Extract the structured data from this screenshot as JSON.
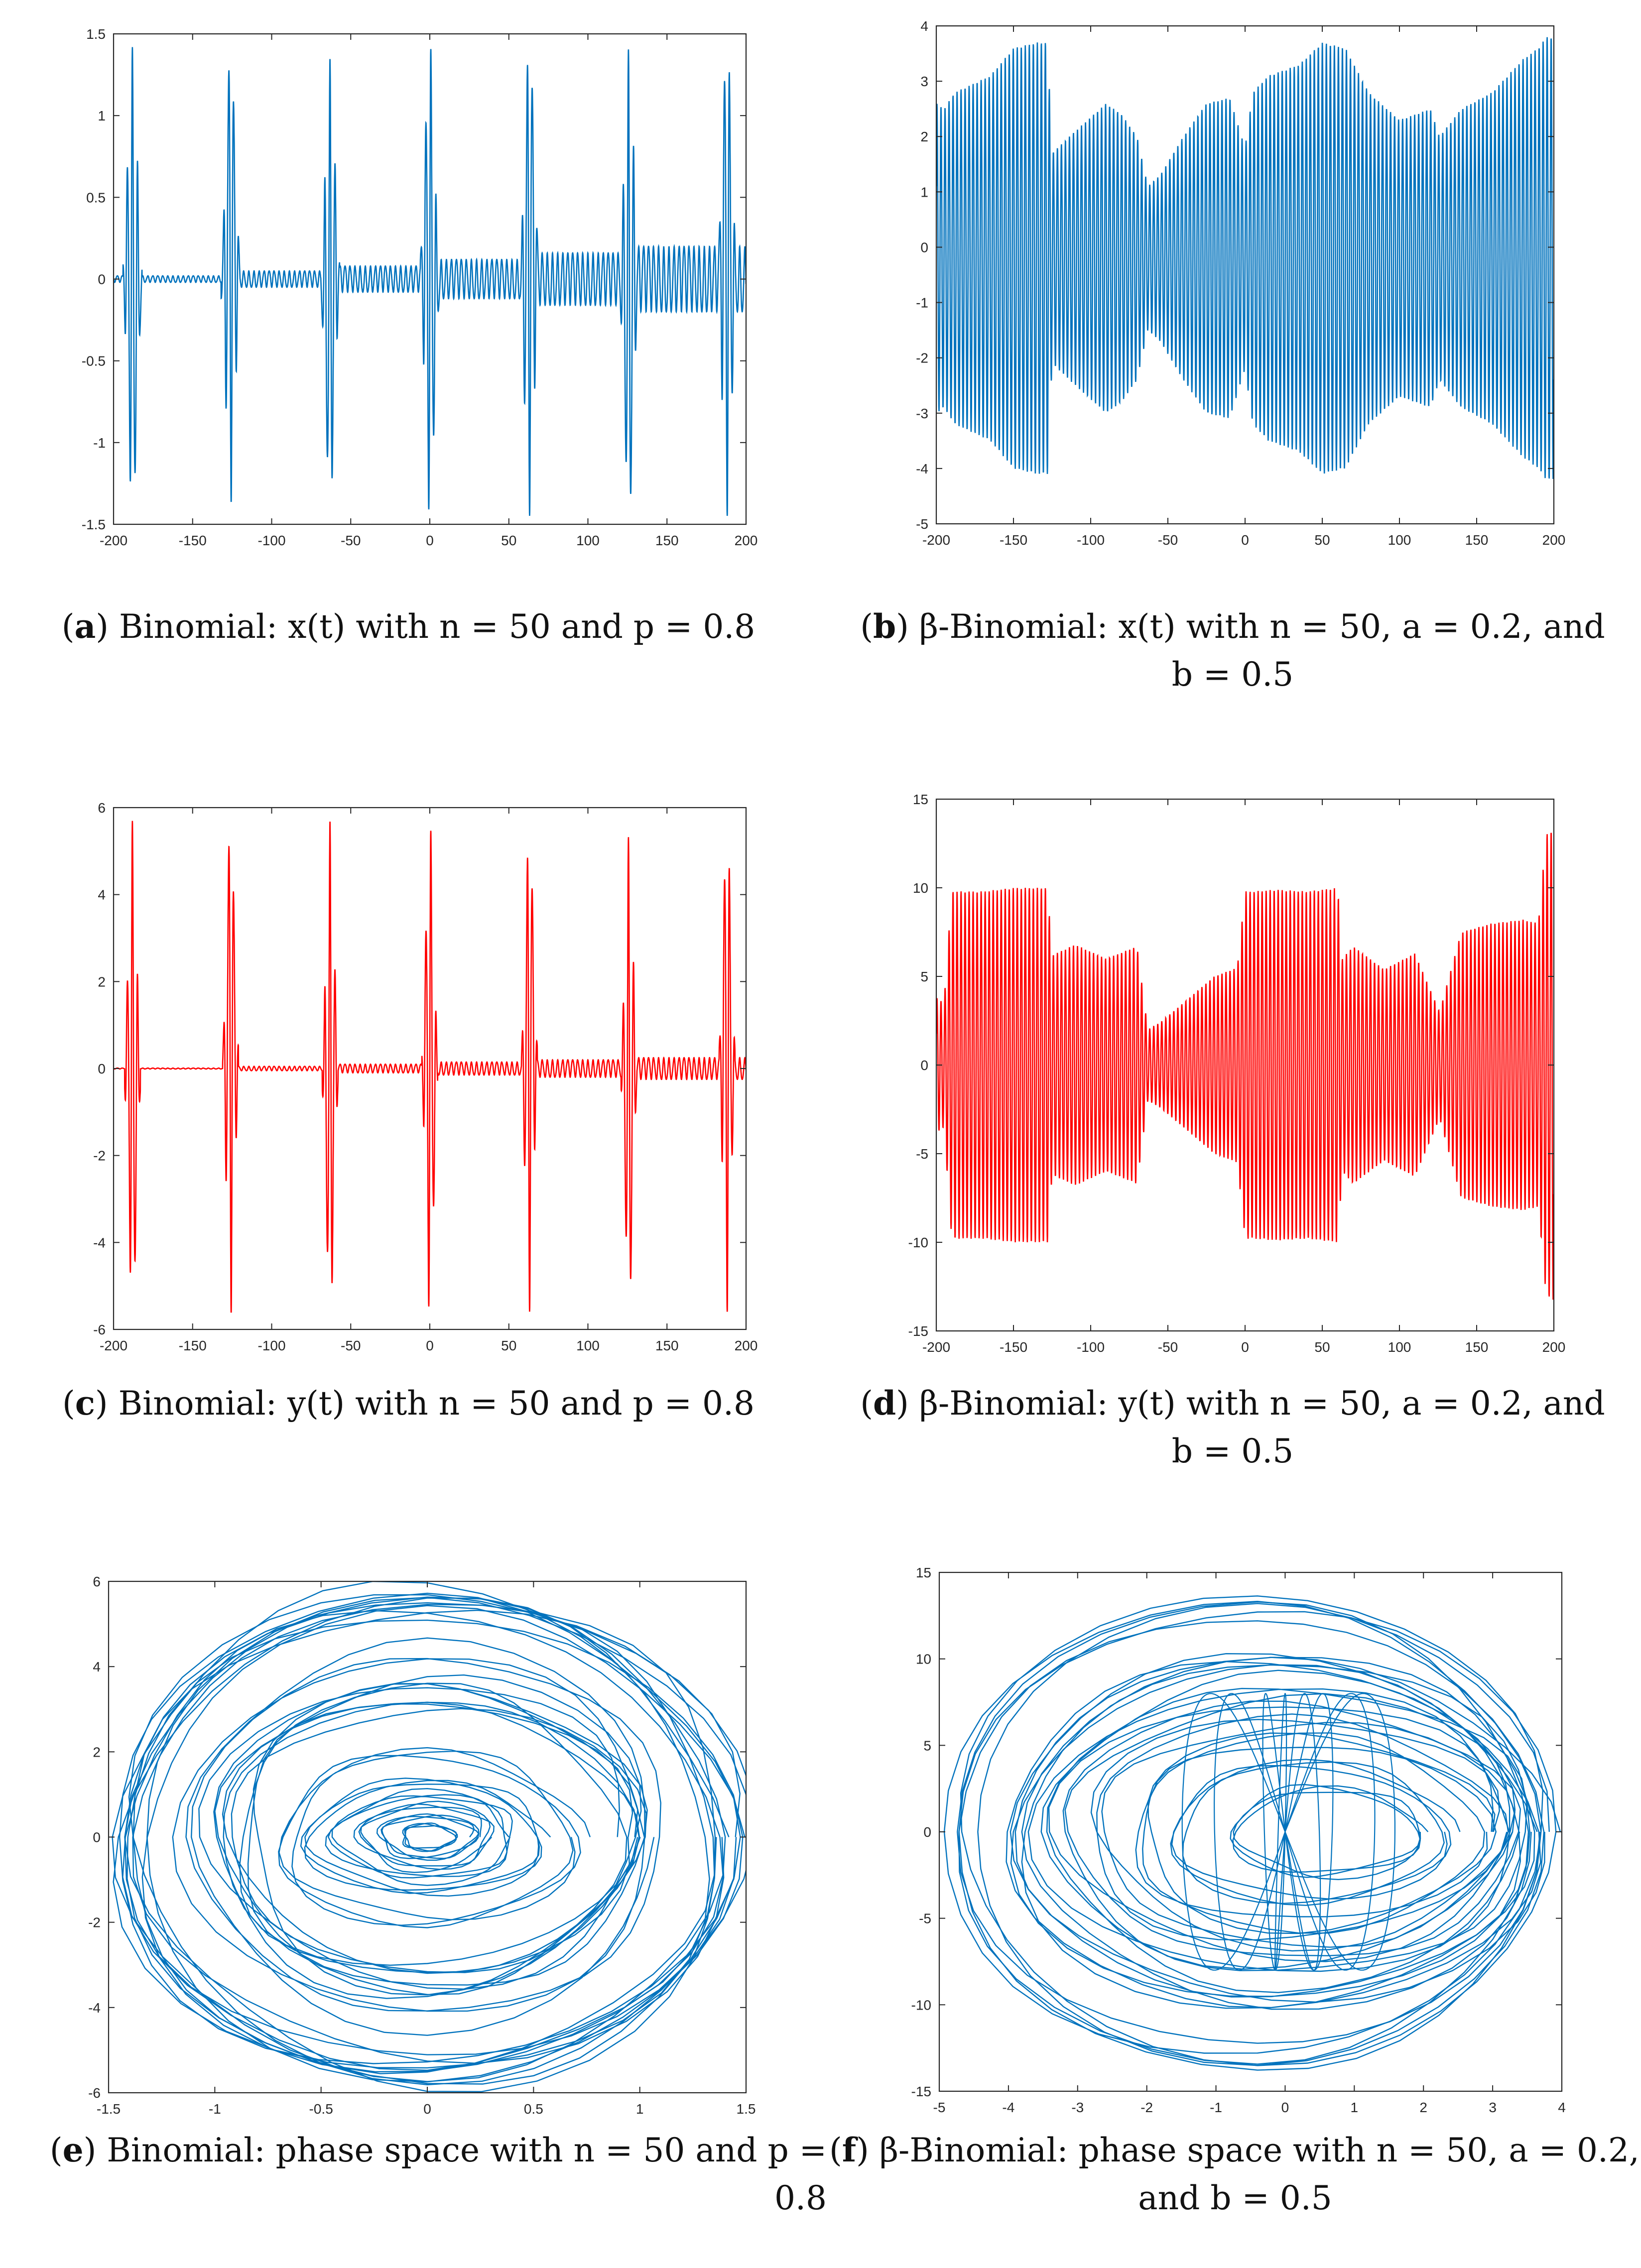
{
  "figure": {
    "panels": [
      {
        "id": "a",
        "letter": "a",
        "caption_line1": " Binomial: x(t) with n = 50 and p = 0.8",
        "caption_line2": ""
      },
      {
        "id": "b",
        "letter": "b",
        "caption_line1": " β-Binomial: x(t) with n = 50, a = 0.2, and",
        "caption_line2": "b = 0.5"
      },
      {
        "id": "c",
        "letter": "c",
        "caption_line1": " Binomial: y(t) with n = 50 and p = 0.8",
        "caption_line2": ""
      },
      {
        "id": "d",
        "letter": "d",
        "caption_line1": " β-Binomial: y(t) with n = 50, a = 0.2, and",
        "caption_line2": "b = 0.5"
      },
      {
        "id": "e",
        "letter": "e",
        "caption_line1": " Binomial: phase space with n = 50 and p = 0.8",
        "caption_line2": ""
      },
      {
        "id": "f",
        "letter": "f",
        "caption_line1": " β-Binomial: phase space with n = 50, a = 0.2,",
        "caption_line2": "and b = 0.5"
      }
    ]
  },
  "colors": {
    "blue": "#0072BD",
    "red": "#FF0000",
    "axis": "#262626"
  },
  "chart_data": [
    {
      "id": "a",
      "type": "line",
      "title": "",
      "xlabel": "",
      "ylabel": "",
      "xlim": [
        -200,
        200
      ],
      "ylim": [
        -1.5,
        1.5
      ],
      "xticks": [
        -200,
        -150,
        -100,
        -50,
        0,
        50,
        100,
        150,
        200
      ],
      "xtick_labels": [
        "-200",
        "-150",
        "-100",
        "-50",
        "0",
        "50",
        "100",
        "150",
        "200"
      ],
      "yticks": [
        -1.5,
        -1,
        -0.5,
        0,
        0.5,
        1,
        1.5
      ],
      "ytick_labels": [
        "-1.5",
        "-1",
        "-0.5",
        "0",
        "0.5",
        "1",
        "1.5"
      ],
      "color": "blue",
      "grid": false,
      "series": [
        {
          "name": "x(t)",
          "model": "bursts",
          "burst_centers": [
            -188,
            -126,
            -63,
            0,
            63,
            126,
            188
          ],
          "burst_amplitudes": [
            1.42,
            1.38,
            1.35,
            1.45,
            1.45,
            1.42,
            1.45
          ],
          "burst_halfwidth": 6,
          "between_amplitudes": [
            0.02,
            0.05,
            0.08,
            0.12,
            0.16,
            0.2
          ],
          "oscillation_period": 3.2
        }
      ]
    },
    {
      "id": "b",
      "type": "line",
      "title": "",
      "xlabel": "",
      "ylabel": "",
      "xlim": [
        -200,
        200
      ],
      "ylim": [
        -5,
        4
      ],
      "xticks": [
        -200,
        -150,
        -100,
        -50,
        0,
        50,
        100,
        150,
        200
      ],
      "xtick_labels": [
        "-200",
        "-150",
        "-100",
        "-50",
        "0",
        "50",
        "100",
        "150",
        "200"
      ],
      "yticks": [
        -5,
        -4,
        -3,
        -2,
        -1,
        0,
        1,
        2,
        3,
        4
      ],
      "ytick_labels": [
        "-5",
        "-4",
        "-3",
        "-2",
        "-1",
        "0",
        "1",
        "2",
        "3",
        "4"
      ],
      "color": "blue",
      "grid": false,
      "series": [
        {
          "name": "x(t)",
          "model": "envelope",
          "envelope_t": [
            -200,
            -195,
            -188,
            -165,
            -150,
            -135,
            -128,
            -125,
            -110,
            -90,
            -80,
            -70,
            -63,
            -55,
            -40,
            -25,
            -10,
            0,
            5,
            15,
            35,
            50,
            65,
            80,
            100,
            120,
            126,
            140,
            160,
            180,
            190,
            195,
            200
          ],
          "envelope_a": [
            2.8,
            2.7,
            3.0,
            3.3,
            3.8,
            3.9,
            3.9,
            1.9,
            2.3,
            2.8,
            2.6,
            2.2,
            1.3,
            1.5,
            2.2,
            2.8,
            2.9,
            2.0,
            3.0,
            3.3,
            3.5,
            3.9,
            3.8,
            3.0,
            2.5,
            2.7,
            2.2,
            2.7,
            3.0,
            3.6,
            3.8,
            4.0,
            4.0
          ],
          "oscillation_period": 2.6,
          "offset": -0.2
        }
      ]
    },
    {
      "id": "c",
      "type": "line",
      "title": "",
      "xlabel": "",
      "ylabel": "",
      "xlim": [
        -200,
        200
      ],
      "ylim": [
        -6,
        6
      ],
      "xticks": [
        -200,
        -150,
        -100,
        -50,
        0,
        50,
        100,
        150,
        200
      ],
      "xtick_labels": [
        "-200",
        "-150",
        "-100",
        "-50",
        "0",
        "50",
        "100",
        "150",
        "200"
      ],
      "yticks": [
        -6,
        -4,
        -2,
        0,
        2,
        4,
        6
      ],
      "ytick_labels": [
        "-6",
        "-4",
        "-2",
        "0",
        "2",
        "4",
        "6"
      ],
      "color": "red",
      "grid": false,
      "series": [
        {
          "name": "y(t)",
          "model": "bursts",
          "burst_centers": [
            -188,
            -126,
            -63,
            0,
            63,
            126,
            188
          ],
          "burst_amplitudes": [
            5.7,
            5.7,
            5.7,
            5.7,
            5.6,
            5.4,
            5.6
          ],
          "burst_halfwidth": 5,
          "between_amplitudes": [
            0.01,
            0.05,
            0.1,
            0.15,
            0.2,
            0.25
          ],
          "oscillation_period": 3.2
        }
      ]
    },
    {
      "id": "d",
      "type": "line",
      "title": "",
      "xlabel": "",
      "ylabel": "",
      "xlim": [
        -200,
        200
      ],
      "ylim": [
        -15,
        15
      ],
      "xticks": [
        -200,
        -150,
        -100,
        -50,
        0,
        50,
        100,
        150,
        200
      ],
      "xtick_labels": [
        "-200",
        "-150",
        "-100",
        "-50",
        "0",
        "50",
        "100",
        "150",
        "200"
      ],
      "yticks": [
        -15,
        -10,
        -5,
        0,
        5,
        10,
        15
      ],
      "ytick_labels": [
        "-15",
        "-10",
        "-5",
        "0",
        "5",
        "10",
        "15"
      ],
      "color": "red",
      "grid": false,
      "series": [
        {
          "name": "y(t)",
          "model": "envelope",
          "envelope_t": [
            -200,
            -195,
            -190,
            -170,
            -150,
            -130,
            -128,
            -125,
            -110,
            -90,
            -70,
            -63,
            -55,
            -40,
            -20,
            -5,
            0,
            5,
            20,
            40,
            60,
            63,
            70,
            90,
            110,
            126,
            140,
            160,
            180,
            190,
            195,
            200
          ],
          "envelope_a": [
            3.8,
            3.5,
            9.8,
            9.8,
            10.0,
            10.0,
            10.0,
            6.2,
            6.8,
            6.0,
            6.7,
            2.0,
            2.4,
            3.5,
            5.0,
            5.5,
            9.8,
            9.8,
            9.9,
            9.8,
            10.0,
            6.0,
            6.7,
            5.4,
            6.3,
            3.0,
            7.5,
            8.0,
            8.2,
            8.0,
            13.0,
            13.3
          ],
          "oscillation_period": 2.6,
          "offset": 0
        }
      ]
    },
    {
      "id": "e",
      "type": "line",
      "title": "",
      "xlabel": "",
      "ylabel": "",
      "xlim": [
        -1.5,
        1.5
      ],
      "ylim": [
        -6,
        6
      ],
      "xticks": [
        -1.5,
        -1,
        -0.5,
        0,
        0.5,
        1,
        1.5
      ],
      "xtick_labels": [
        "-1.5",
        "-1",
        "-0.5",
        "0",
        "0.5",
        "1",
        "1.5"
      ],
      "yticks": [
        -6,
        -4,
        -2,
        0,
        2,
        4,
        6
      ],
      "ytick_labels": [
        "-6",
        "-4",
        "-2",
        "0",
        "2",
        "4",
        "6"
      ],
      "color": "blue",
      "grid": false,
      "series": [
        {
          "name": "phase space",
          "model": "loops",
          "loops": [
            [
              1.45,
              5.6,
              0.06,
              0.25
            ],
            [
              1.42,
              5.5,
              0.05,
              0.2
            ],
            [
              1.38,
              5.4,
              0.07,
              0.2
            ],
            [
              1.4,
              5.65,
              0.08,
              0.3
            ],
            [
              1.1,
              4.3,
              0.06,
              0.2
            ],
            [
              1.0,
              3.6,
              0.07,
              0.2
            ],
            [
              0.97,
              3.1,
              0.05,
              0.15
            ],
            [
              0.9,
              3.5,
              0.08,
              0.2
            ],
            [
              0.68,
              2.0,
              0.06,
              0.15
            ],
            [
              0.55,
              1.3,
              0.05,
              0.1
            ],
            [
              0.42,
              1.0,
              0.05,
              0.1
            ],
            [
              0.3,
              0.75,
              0.04,
              0.08
            ],
            [
              0.22,
              0.5,
              0.03,
              0.06
            ],
            [
              0.12,
              0.3,
              0.02,
              0.04
            ]
          ]
        }
      ]
    },
    {
      "id": "f",
      "type": "line",
      "title": "",
      "xlabel": "",
      "ylabel": "",
      "xlim": [
        -5,
        4
      ],
      "ylim": [
        -15,
        15
      ],
      "xticks": [
        -5,
        -4,
        -3,
        -2,
        -1,
        0,
        1,
        2,
        3,
        4
      ],
      "xtick_labels": [
        "-5",
        "-4",
        "-3",
        "-2",
        "-1",
        "0",
        "1",
        "2",
        "3",
        "4"
      ],
      "yticks": [
        -15,
        -10,
        -5,
        0,
        5,
        10,
        15
      ],
      "ytick_labels": [
        "-15",
        "-10",
        "-5",
        "0",
        "5",
        "10",
        "15"
      ],
      "color": "blue",
      "grid": false,
      "series": [
        {
          "name": "phase space",
          "model": "loops",
          "loops": [
            [
              -0.4,
              4.1,
              4.45,
              13.3,
              0.1,
              0.3
            ],
            [
              -0.4,
              4.0,
              4.3,
              13.0,
              0.1,
              0.3
            ],
            [
              -0.2,
              3.9,
              3.7,
              10.0,
              0.15,
              0.4
            ],
            [
              -0.2,
              3.8,
              3.6,
              9.8,
              0.15,
              0.4
            ],
            [
              -0.1,
              3.6,
              3.3,
              8.5,
              0.2,
              0.5
            ],
            [
              0.0,
              3.3,
              3.2,
              7.5,
              0.2,
              0.5
            ],
            [
              0.1,
              3.0,
              2.9,
              6.5,
              0.2,
              0.5
            ],
            [
              0.2,
              2.6,
              2.4,
              5.5,
              0.2,
              0.4
            ],
            [
              0.3,
              2.0,
              1.9,
              4.0,
              0.15,
              0.3
            ],
            [
              0.5,
              1.5,
              1.2,
              2.5,
              0.1,
              0.3
            ]
          ]
        }
      ]
    }
  ]
}
